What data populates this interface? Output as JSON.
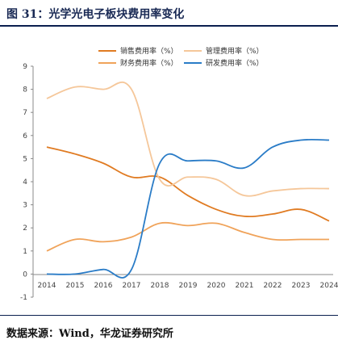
{
  "header": {
    "title": "图 31：光学光电子板块费用率变化"
  },
  "footer": {
    "source": "数据来源：Wind，华龙证券研究所"
  },
  "chart_data": {
    "type": "line",
    "x": [
      "2014",
      "2015",
      "2016",
      "2017",
      "2018",
      "2019",
      "2020",
      "2021",
      "2022",
      "2023",
      "2024"
    ],
    "ylim": [
      -1,
      9
    ],
    "yticks": [
      "9",
      "8",
      "7",
      "6",
      "5",
      "4",
      "3",
      "2",
      "1",
      "0",
      "-1"
    ],
    "grid": false,
    "legend_position": "top",
    "series": [
      {
        "name": "销售费用率（%）",
        "color": "#e07b22",
        "values": [
          5.5,
          5.2,
          4.8,
          4.2,
          4.2,
          3.4,
          2.8,
          2.5,
          2.6,
          2.8,
          2.3
        ]
      },
      {
        "name": "管理费用率（%）",
        "color": "#f5c79a",
        "values": [
          7.6,
          8.1,
          8.0,
          8.0,
          4.1,
          4.2,
          4.1,
          3.4,
          3.6,
          3.7,
          3.7
        ]
      },
      {
        "name": "财务费用率（%）",
        "color": "#f0a35a",
        "values": [
          1.0,
          1.5,
          1.4,
          1.6,
          2.2,
          2.1,
          2.2,
          1.8,
          1.5,
          1.5,
          1.5
        ]
      },
      {
        "name": "研发费用率（%）",
        "color": "#2a7cc7",
        "values": [
          0.0,
          0.0,
          0.2,
          0.2,
          4.8,
          4.9,
          4.9,
          4.6,
          5.5,
          5.8,
          5.8
        ]
      }
    ]
  }
}
